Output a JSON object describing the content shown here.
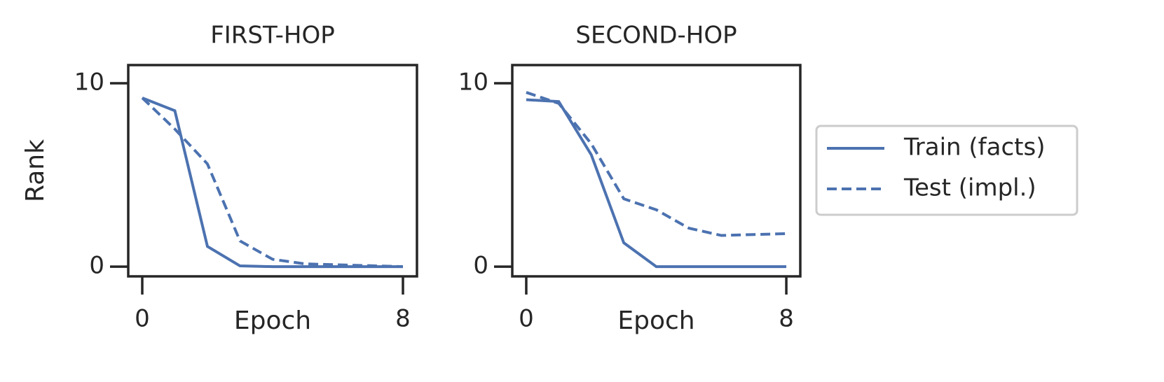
{
  "chart_data": [
    {
      "type": "line",
      "title": "FIRST-HOP",
      "x_label": "Epoch",
      "y_label": "Rank",
      "x": [
        0,
        1,
        2,
        3,
        4,
        5,
        6,
        7,
        8
      ],
      "series": [
        {
          "name": "Train (facts)",
          "color": "#4c72b0",
          "style": "solid",
          "values": [
            9.2,
            8.5,
            1.1,
            0.04,
            0,
            0,
            0,
            0,
            0
          ]
        },
        {
          "name": "Test (impl.)",
          "color": "#4c72b0",
          "style": "dashed",
          "values": [
            9.2,
            7.5,
            5.6,
            1.4,
            0.4,
            0.15,
            0.1,
            0.05,
            0
          ]
        }
      ],
      "xlim": [
        -0.43,
        8.43
      ],
      "ylim": [
        -0.53,
        10.99
      ],
      "xticks": [
        0,
        8
      ],
      "yticks": [
        0,
        10
      ],
      "grid": false
    },
    {
      "type": "line",
      "title": "SECOND-HOP",
      "x_label": "Epoch",
      "x": [
        0,
        1,
        2,
        3,
        4,
        5,
        6,
        7,
        8
      ],
      "series": [
        {
          "name": "Train (facts)",
          "color": "#4c72b0",
          "style": "solid",
          "values": [
            9.1,
            9.0,
            6.1,
            1.3,
            0,
            0,
            0,
            0,
            0
          ]
        },
        {
          "name": "Test (impl.)",
          "color": "#4c72b0",
          "style": "dashed",
          "values": [
            9.5,
            8.9,
            6.7,
            3.7,
            3.1,
            2.1,
            1.7,
            1.75,
            1.8
          ]
        }
      ],
      "xlim": [
        -0.43,
        8.43
      ],
      "ylim": [
        -0.53,
        10.99
      ],
      "xticks": [
        0,
        8
      ],
      "yticks": [
        0,
        10
      ],
      "grid": false,
      "legend": "outside-right"
    }
  ]
}
